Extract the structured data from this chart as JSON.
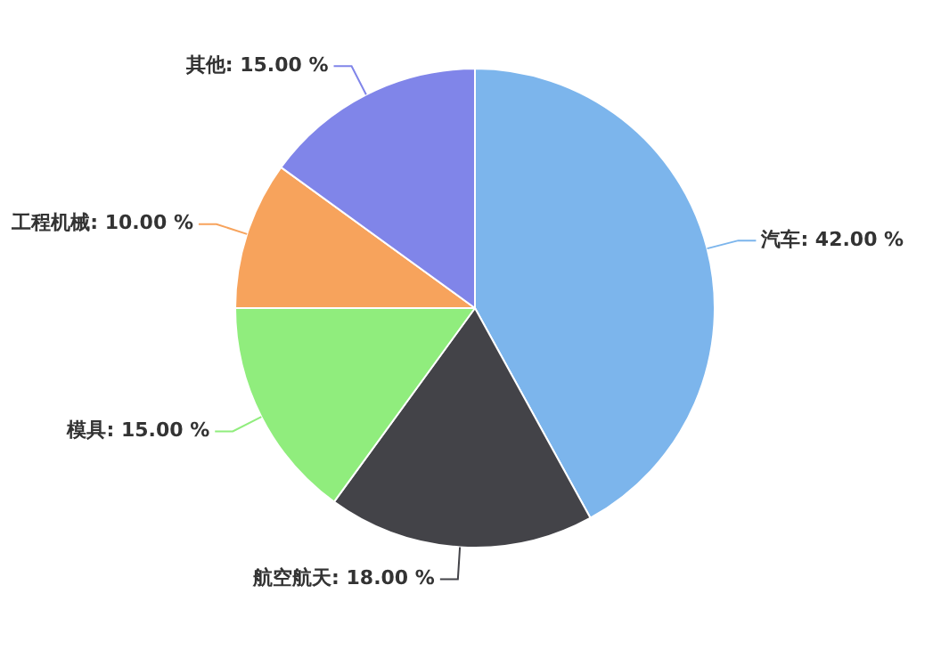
{
  "chart_data": {
    "type": "pie",
    "categories": [
      "汽车",
      "航空航天",
      "模具",
      "工程机械",
      "其他"
    ],
    "values": [
      42,
      18,
      15,
      10,
      15
    ],
    "value_labels": [
      "42.00 %",
      "18.00 %",
      "15.00 %",
      "10.00 %",
      "15.00 %"
    ],
    "colors": [
      "#7cb5ec",
      "#434348",
      "#90ed7d",
      "#f7a35c",
      "#8085e9"
    ],
    "legend": false
  }
}
